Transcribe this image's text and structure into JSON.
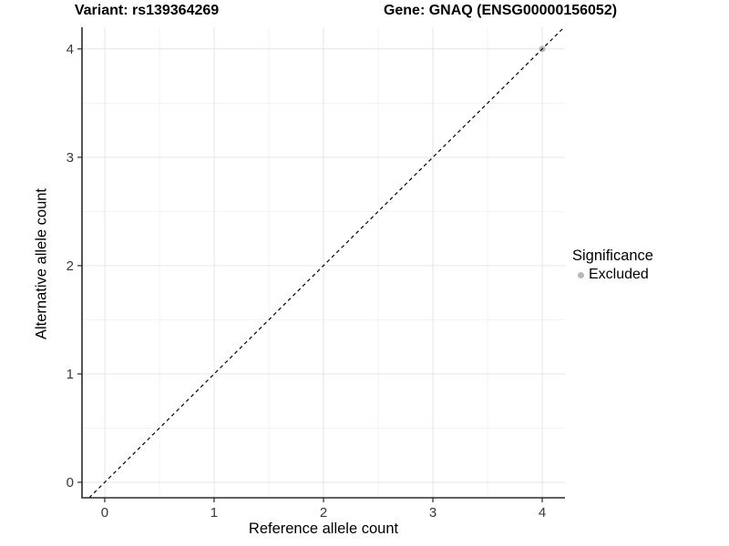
{
  "titles": {
    "left": "Variant: rs139364269",
    "right": "Gene: GNAQ (ENSG00000156052)"
  },
  "chart_data": {
    "type": "scatter",
    "xlabel": "Reference allele count",
    "ylabel": "Alternative allele count",
    "xlim": [
      -0.208,
      4.208
    ],
    "ylim": [
      -0.143,
      4.2
    ],
    "xticks": [
      0,
      1,
      2,
      3,
      4
    ],
    "yticks": [
      0,
      1,
      2,
      3,
      4
    ],
    "minor_xticks": [
      0.5,
      1.5,
      2.5,
      3.5
    ],
    "minor_yticks": [
      0.5,
      1.5,
      2.5,
      3.5
    ],
    "grid": true,
    "series": [
      {
        "name": "Excluded",
        "color": "#b8b8b8",
        "points": [
          {
            "x": 4,
            "y": 4
          }
        ]
      }
    ],
    "reference_line": {
      "style": "dashed",
      "slope": 1,
      "intercept": 0,
      "color": "#000000"
    },
    "legend": {
      "title": "Significance",
      "position": "right",
      "items": [
        {
          "label": "Excluded",
          "color": "#b8b8b8"
        }
      ]
    }
  },
  "colors": {
    "background": "#ffffff",
    "axis_line": "#2b2b2b",
    "tick_label": "#383838",
    "grid_major": "#e6e6e6",
    "grid_minor": "#f3f3f3"
  }
}
